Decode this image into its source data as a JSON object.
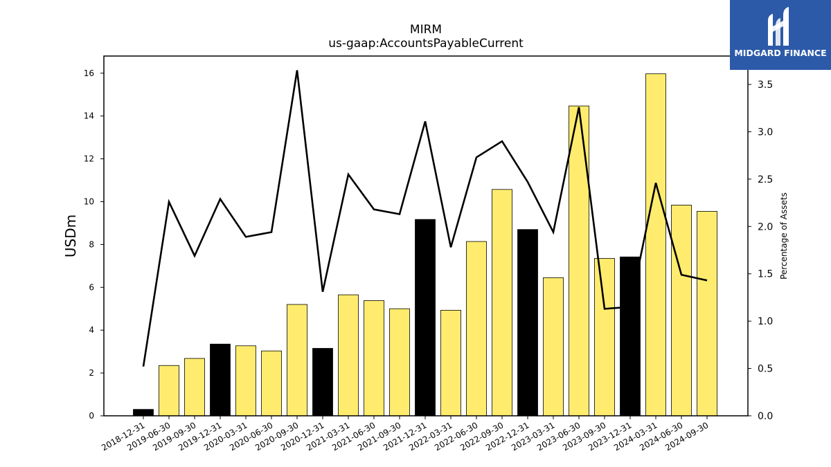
{
  "chart_data": {
    "type": "bar",
    "title": "MIRM",
    "subtitle": "us-gaap:AccountsPayableCurrent",
    "ylabel": "USDm",
    "y2label": "Percentage of Assets",
    "ylim": [
      0,
      16.8
    ],
    "y2lim": [
      0,
      3.8
    ],
    "yticks": [
      "0",
      "2",
      "4",
      "6",
      "8",
      "10",
      "12",
      "14",
      "16"
    ],
    "y2ticks": [
      "0.0",
      "0.5",
      "1.0",
      "1.5",
      "2.0",
      "2.5",
      "3.0",
      "3.5"
    ],
    "categories": [
      "2018-12-31",
      "2019-06-30",
      "2019-09-30",
      "2019-12-31",
      "2020-03-31",
      "2020-06-30",
      "2020-09-30",
      "2020-12-31",
      "2021-03-31",
      "2021-06-30",
      "2021-09-30",
      "2021-12-31",
      "2022-03-31",
      "2022-06-30",
      "2022-09-30",
      "2022-12-31",
      "2023-03-31",
      "2023-06-30",
      "2023-09-30",
      "2023-12-31",
      "2024-03-31",
      "2024-06-30",
      "2024-09-30"
    ],
    "series": [
      {
        "kind": "bar",
        "axis": "left",
        "values": [
          0.3,
          2.35,
          2.68,
          3.35,
          3.27,
          3.03,
          5.2,
          3.15,
          5.65,
          5.38,
          5.0,
          9.17,
          4.93,
          8.14,
          10.57,
          8.7,
          6.45,
          14.47,
          7.35,
          7.42,
          15.97,
          9.84,
          9.55
        ],
        "colors": [
          "#000000",
          "#ffec6e",
          "#ffec6e",
          "#000000",
          "#ffec6e",
          "#ffec6e",
          "#ffec6e",
          "#000000",
          "#ffec6e",
          "#ffec6e",
          "#ffec6e",
          "#000000",
          "#ffec6e",
          "#ffec6e",
          "#ffec6e",
          "#000000",
          "#ffec6e",
          "#ffec6e",
          "#ffec6e",
          "#000000",
          "#ffec6e",
          "#ffec6e",
          "#ffec6e"
        ]
      },
      {
        "kind": "line",
        "axis": "right",
        "color": "#000000",
        "values": [
          0.52,
          2.26,
          1.69,
          2.29,
          1.89,
          1.94,
          3.65,
          1.31,
          2.55,
          2.18,
          2.13,
          3.11,
          1.78,
          2.73,
          2.9,
          2.47,
          1.94,
          3.26,
          1.13,
          1.15,
          2.46,
          1.49,
          1.43
        ]
      }
    ]
  },
  "logo": {
    "text": "MIDGARD FINANCE",
    "bg_color": "#2c5aa9",
    "icon": "midgard-logo-icon"
  }
}
